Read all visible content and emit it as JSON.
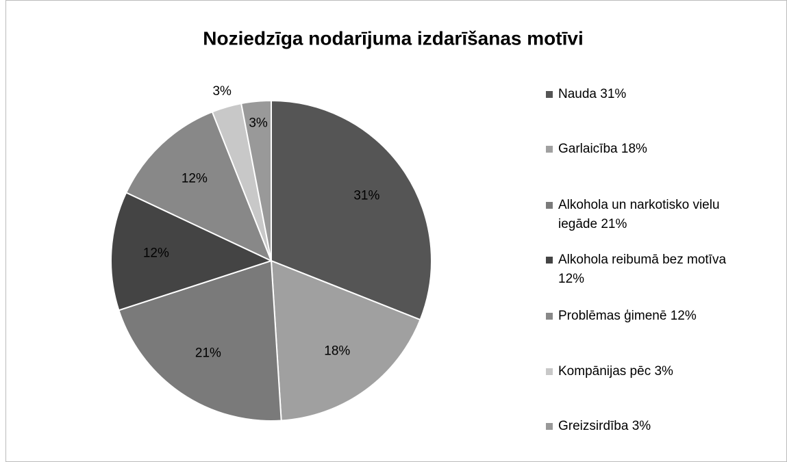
{
  "chart_data": {
    "type": "pie",
    "title": "Noziedzīga nodarījuma izdarīšanas motīvi",
    "categories": [
      "Nauda 31%",
      "Garlaicība 18%",
      "Alkohola un narkotisko vielu iegāde 21%",
      "Alkohola reibumā bez motīva 12%",
      "Problēmas ģimenē 12%",
      "Kompānijas pēc 3%",
      "Greizsirdība 3%"
    ],
    "values": [
      31,
      18,
      21,
      12,
      12,
      3,
      3
    ],
    "value_labels": [
      "31%",
      "18%",
      "21%",
      "12%",
      "12%",
      "3%",
      "3%"
    ],
    "colors": [
      "#555555",
      "#a0a0a0",
      "#7a7a7a",
      "#444444",
      "#888888",
      "#c8c8c8",
      "#999999"
    ],
    "legend": "right"
  }
}
